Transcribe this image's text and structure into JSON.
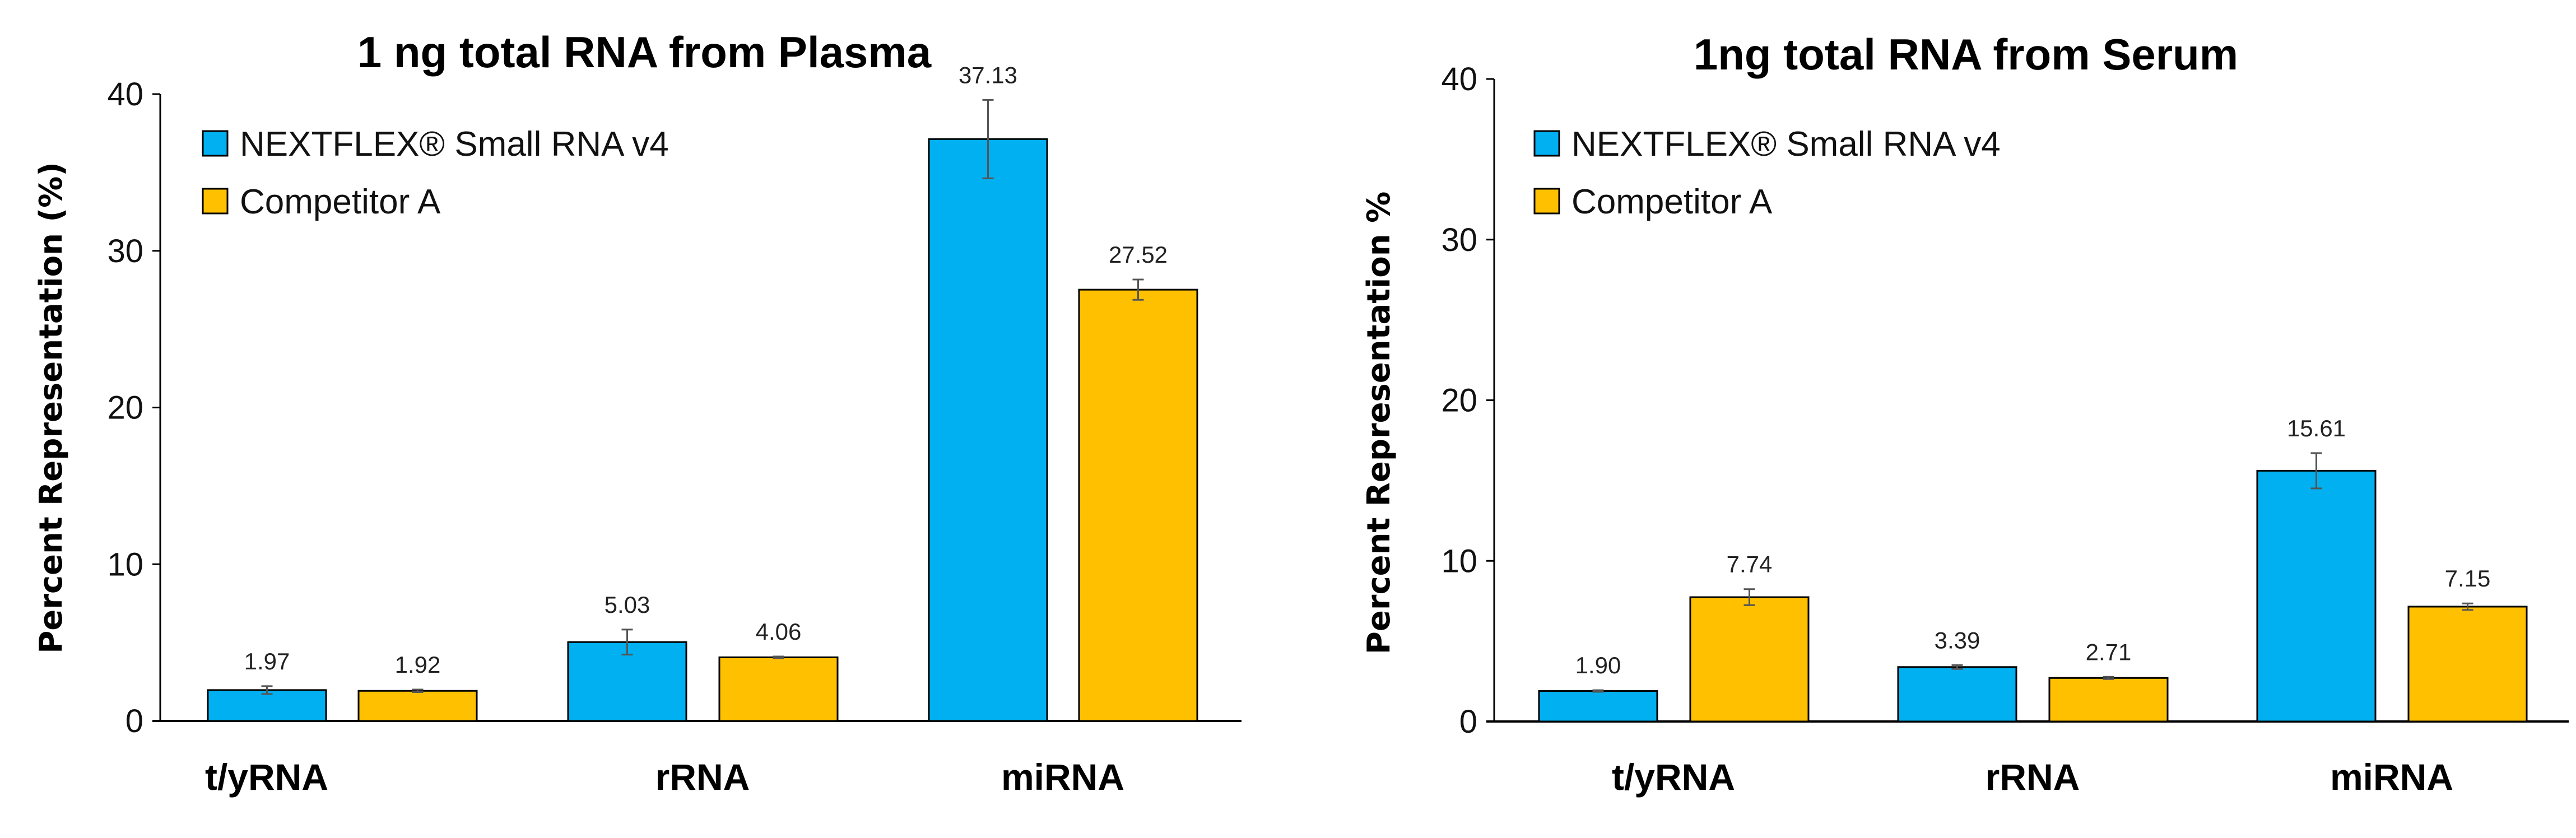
{
  "chart_data": [
    {
      "type": "bar",
      "title": "1 ng total RNA from Plasma",
      "ylabel": "Percent Representation (%)",
      "xlabel": "",
      "ylim": [
        0,
        40
      ],
      "yticks": [
        "0",
        "10",
        "20",
        "30",
        "40"
      ],
      "categories": [
        "t/yRNA",
        "rRNA",
        "miRNA"
      ],
      "legend_position": "top-left",
      "grid": false,
      "series": [
        {
          "name": "NEXTFLEX® Small RNA v4",
          "color": "#00B0F0",
          "values": [
            1.97,
            5.03,
            37.13
          ],
          "labels": [
            "1.97",
            "5.03",
            "37.13"
          ],
          "errors": [
            0.25,
            0.8,
            2.5
          ]
        },
        {
          "name": "Competitor A",
          "color": "#FFC000",
          "values": [
            1.92,
            4.06,
            27.52
          ],
          "labels": [
            "1.92",
            "4.06",
            "27.52"
          ],
          "errors": [
            0.08,
            0.05,
            0.65
          ]
        }
      ]
    },
    {
      "type": "bar",
      "title": "1ng total RNA from Serum",
      "ylabel": "Percent Representation %",
      "xlabel": "",
      "ylim": [
        0,
        40
      ],
      "yticks": [
        "0",
        "10",
        "20",
        "30",
        "40"
      ],
      "categories": [
        "t/yRNA",
        "rRNA",
        "miRNA"
      ],
      "legend_position": "top-left",
      "grid": false,
      "series": [
        {
          "name": "NEXTFLEX® Small RNA v4",
          "color": "#00B0F0",
          "values": [
            1.9,
            3.39,
            15.61
          ],
          "labels": [
            "1.90",
            "3.39",
            "15.61"
          ],
          "errors": [
            0.05,
            0.12,
            1.1
          ]
        },
        {
          "name": "Competitor A",
          "color": "#FFC000",
          "values": [
            7.74,
            2.71,
            7.15
          ],
          "labels": [
            "7.74",
            "2.71",
            "7.15"
          ],
          "errors": [
            0.5,
            0.07,
            0.2
          ]
        }
      ]
    }
  ]
}
